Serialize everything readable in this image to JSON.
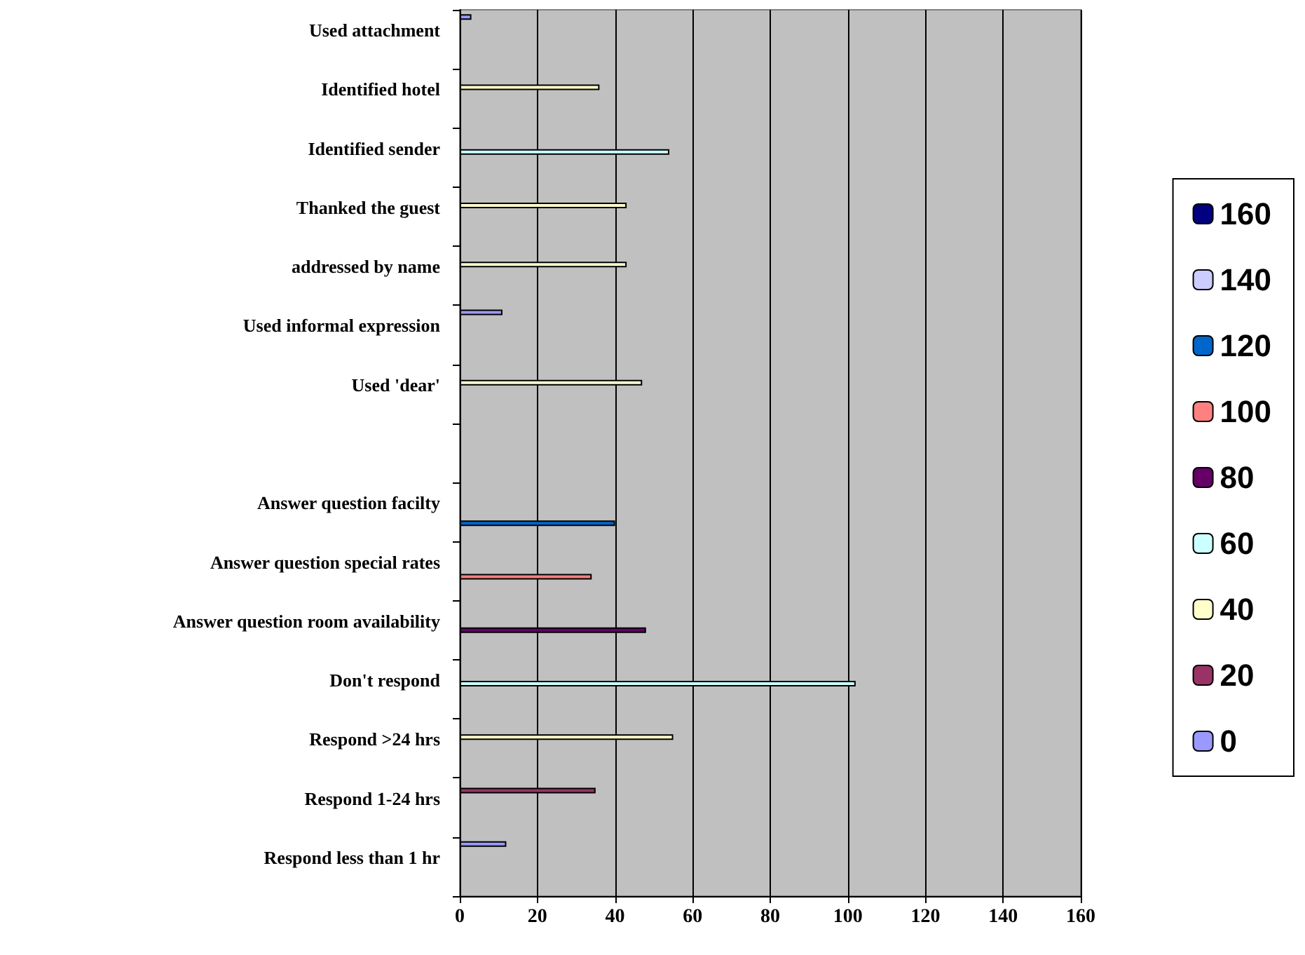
{
  "chart_data": {
    "type": "bar",
    "orientation": "horizontal",
    "categories": [
      "Used attachment",
      "Identified hotel",
      "Identified sender",
      "Thanked the guest",
      "addressed by name",
      "Used informal expression",
      "Used 'dear'",
      null,
      "Answer question facilty",
      "Answer question special rates",
      "Answer question room availability",
      "Don't respond",
      "Respond >24 hrs",
      "Respond 1-24 hrs",
      "Respond less than 1 hr"
    ],
    "series": [
      {
        "name": "0",
        "color": "#9999ff",
        "values": [
          3,
          null,
          null,
          null,
          null,
          11,
          null,
          null,
          null,
          null,
          null,
          null,
          null,
          null,
          12
        ]
      },
      {
        "name": "20",
        "color": "#993366",
        "values": [
          null,
          null,
          null,
          null,
          null,
          null,
          null,
          null,
          null,
          null,
          null,
          null,
          null,
          35,
          null
        ]
      },
      {
        "name": "40",
        "color": "#ffffcc",
        "values": [
          null,
          36,
          null,
          43,
          43,
          null,
          47,
          null,
          null,
          null,
          null,
          null,
          55,
          null,
          null
        ]
      },
      {
        "name": "60",
        "color": "#ccffff",
        "values": [
          null,
          null,
          54,
          null,
          null,
          null,
          null,
          null,
          null,
          null,
          null,
          102,
          null,
          null,
          null
        ]
      },
      {
        "name": "80",
        "color": "#660066",
        "values": [
          null,
          null,
          null,
          null,
          null,
          null,
          null,
          null,
          null,
          null,
          48,
          null,
          null,
          null,
          null
        ]
      },
      {
        "name": "100",
        "color": "#ff8080",
        "values": [
          null,
          null,
          null,
          null,
          null,
          null,
          null,
          null,
          null,
          34,
          null,
          null,
          null,
          null,
          null
        ]
      },
      {
        "name": "120",
        "color": "#0066cc",
        "values": [
          null,
          null,
          null,
          null,
          null,
          null,
          null,
          null,
          40,
          null,
          null,
          null,
          null,
          null,
          null
        ]
      },
      {
        "name": "140",
        "color": "#ccccff",
        "values": [
          null,
          null,
          null,
          null,
          null,
          null,
          null,
          null,
          null,
          null,
          null,
          null,
          null,
          null,
          null
        ]
      },
      {
        "name": "160",
        "color": "#000080",
        "values": [
          null,
          null,
          null,
          null,
          null,
          null,
          null,
          null,
          null,
          null,
          null,
          null,
          null,
          null,
          null
        ]
      }
    ],
    "xlim": [
      0,
      160
    ],
    "xticks": [
      0,
      20,
      40,
      60,
      80,
      100,
      120,
      140,
      160
    ],
    "grid": "x",
    "legend": "right"
  }
}
